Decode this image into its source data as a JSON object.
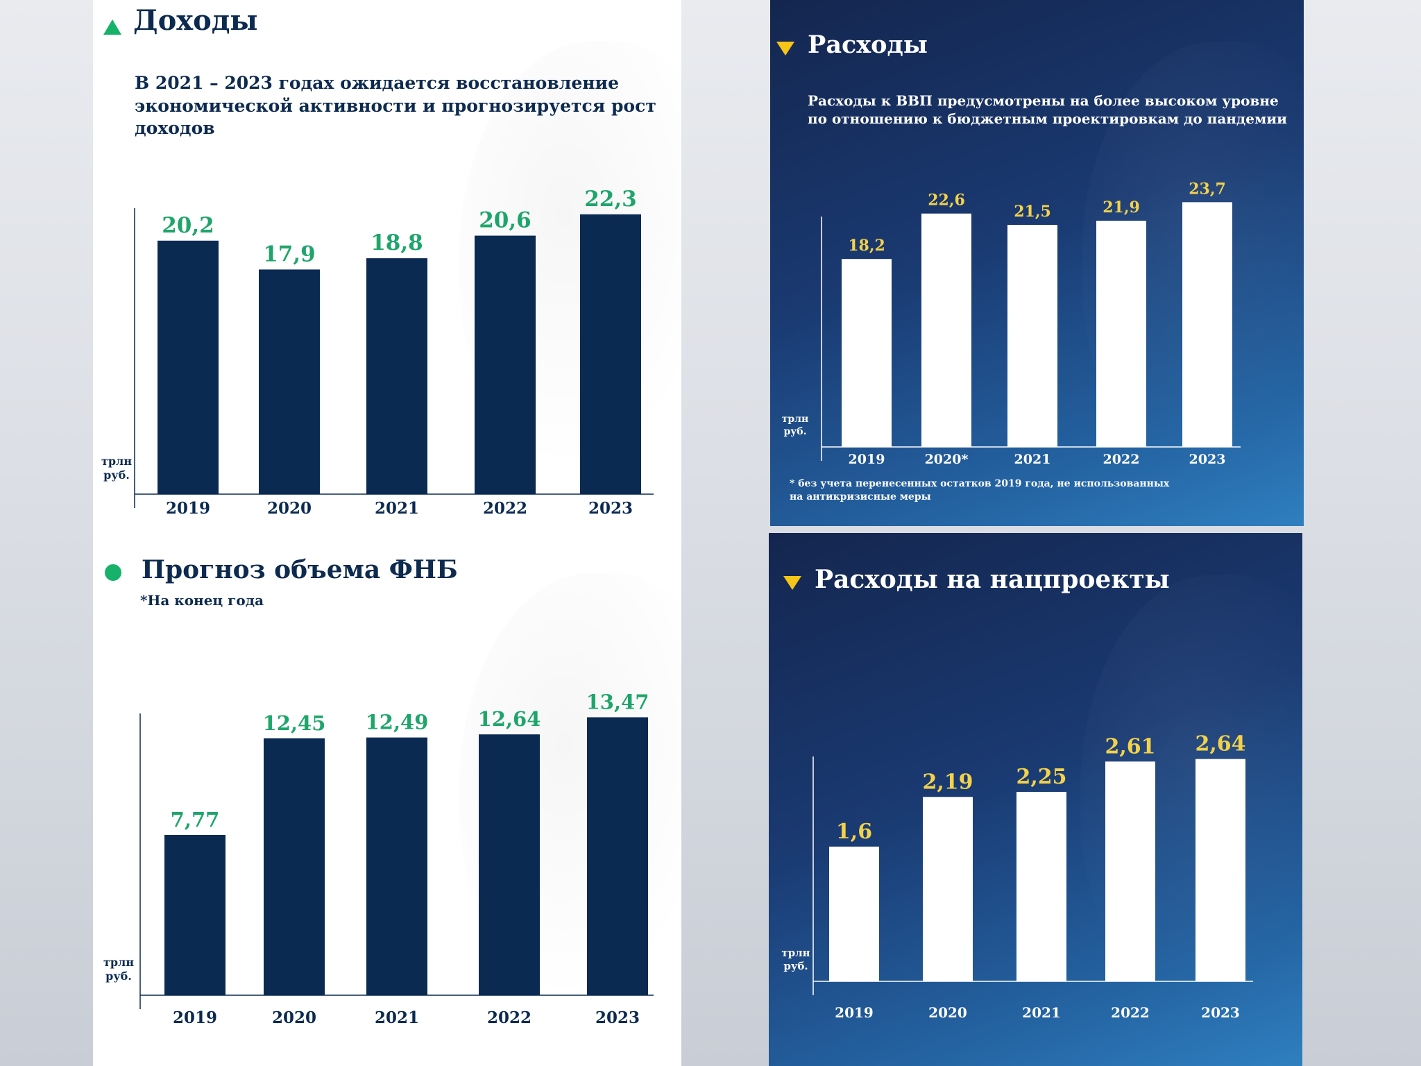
{
  "panels": {
    "revenue": {
      "title": "Доходы",
      "subtitle_line1": "В 2021 – 2023 годах ожидается восстановление",
      "subtitle_line2": "экономической активности и прогнозируется рост доходов",
      "unit_line1": "трлн",
      "unit_line2": "руб."
    },
    "expenses": {
      "title": "Расходы",
      "subtitle_line1": "Расходы к ВВП предусмотрены на более высоком уровне",
      "subtitle_line2": "по отношению к бюджетным проектировкам до пандемии",
      "unit_line1": "трлн",
      "unit_line2": "руб.",
      "footnote_line1": "* без учета перенесенных остатков 2019 года, не использованных",
      "footnote_line2": "на антикризисные меры"
    },
    "fnb": {
      "title": "Прогноз объема ФНБ",
      "subtitle": "*На конец года",
      "unit_line1": "трлн",
      "unit_line2": "руб."
    },
    "natprojects": {
      "title": "Расходы на нацпроекты",
      "unit_line1": "трлн",
      "unit_line2": "руб."
    }
  },
  "colors": {
    "navy_bar": "#0b2a52",
    "green_label": "#1fa56b",
    "green_marker": "#17b26a",
    "white_bar": "#ffffff",
    "yellow_label": "#f3d24a",
    "yellow_marker": "#f5c518"
  },
  "icons": {
    "revenue": "triangle-up-icon",
    "expenses": "triangle-down-icon",
    "fnb": "circle-icon",
    "natprojects": "triangle-down-icon"
  },
  "chart_data": [
    {
      "type": "bar",
      "title": "Доходы",
      "ylabel": "трлн руб.",
      "categories": [
        "2019",
        "2020",
        "2021",
        "2022",
        "2023"
      ],
      "values": [
        20.2,
        17.9,
        18.8,
        20.6,
        22.3
      ],
      "value_labels": [
        "20,2",
        "17,9",
        "18,8",
        "20,6",
        "22,3"
      ],
      "ylim": [
        0,
        25
      ]
    },
    {
      "type": "bar",
      "title": "Расходы",
      "ylabel": "трлн руб.",
      "categories": [
        "2019",
        "2020*",
        "2021",
        "2022",
        "2023"
      ],
      "values": [
        18.2,
        22.6,
        21.5,
        21.9,
        23.7
      ],
      "value_labels": [
        "18,2",
        "22,6",
        "21,5",
        "21,9",
        "23,7"
      ],
      "ylim": [
        0,
        25
      ]
    },
    {
      "type": "bar",
      "title": "Прогноз объема ФНБ",
      "ylabel": "трлн руб.",
      "categories": [
        "2019",
        "2020",
        "2021",
        "2022",
        "2023"
      ],
      "values": [
        7.77,
        12.45,
        12.49,
        12.64,
        13.47
      ],
      "value_labels": [
        "7,77",
        "12,45",
        "12,49",
        "12,64",
        "13,47"
      ],
      "ylim": [
        0,
        15
      ]
    },
    {
      "type": "bar",
      "title": "Расходы на нацпроекты",
      "ylabel": "трлн руб.",
      "categories": [
        "2019",
        "2020",
        "2021",
        "2022",
        "2023"
      ],
      "values": [
        1.6,
        2.19,
        2.25,
        2.61,
        2.64
      ],
      "value_labels": [
        "1,6",
        "2,19",
        "2,25",
        "2,61",
        "2,64"
      ],
      "ylim": [
        0,
        3
      ]
    }
  ]
}
